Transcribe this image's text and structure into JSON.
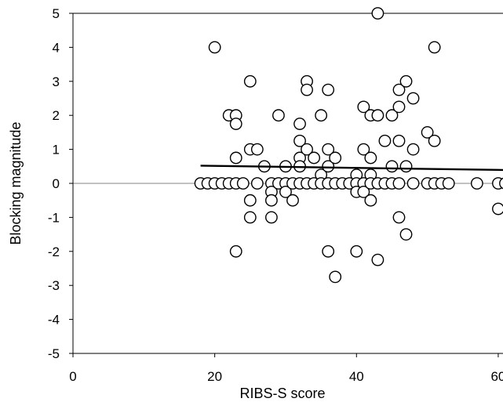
{
  "chart_data": {
    "type": "scatter",
    "title": "",
    "xlabel": "RIBS-S score",
    "ylabel": "Blocking magnitude",
    "xlim": [
      0,
      62
    ],
    "ylim": [
      -5,
      5
    ],
    "x_ticks": [
      "0",
      "20",
      "40",
      "60"
    ],
    "y_ticks": [
      "5",
      "4",
      "3",
      "2",
      "1",
      "0",
      "-1",
      "-2",
      "-3",
      "-4",
      "-5"
    ],
    "grid": false,
    "legend": "none",
    "colors": {
      "marker_fill": "#ffffff",
      "marker_edge": "#000000",
      "zero_line": "#9e9e9e",
      "trend_line": "#000000"
    },
    "trend_line": {
      "x": [
        18,
        62
      ],
      "y": [
        0.52,
        0.39
      ]
    },
    "points": [
      {
        "x": 18,
        "y": 0
      },
      {
        "x": 19,
        "y": 0
      },
      {
        "x": 20,
        "y": 0
      },
      {
        "x": 20,
        "y": 4
      },
      {
        "x": 21,
        "y": 0
      },
      {
        "x": 22,
        "y": 2
      },
      {
        "x": 22,
        "y": 0
      },
      {
        "x": 23,
        "y": 2
      },
      {
        "x": 23,
        "y": 1.75
      },
      {
        "x": 23,
        "y": 0.75
      },
      {
        "x": 23,
        "y": 0
      },
      {
        "x": 23,
        "y": -2
      },
      {
        "x": 24,
        "y": 0
      },
      {
        "x": 25,
        "y": 3
      },
      {
        "x": 25,
        "y": 1
      },
      {
        "x": 25,
        "y": -0.5
      },
      {
        "x": 25,
        "y": -1
      },
      {
        "x": 26,
        "y": 1
      },
      {
        "x": 26,
        "y": 0
      },
      {
        "x": 27,
        "y": 0.5
      },
      {
        "x": 28,
        "y": 0
      },
      {
        "x": 28,
        "y": -0.25
      },
      {
        "x": 28,
        "y": -0.5
      },
      {
        "x": 28,
        "y": -1
      },
      {
        "x": 29,
        "y": 2
      },
      {
        "x": 29,
        "y": 0
      },
      {
        "x": 30,
        "y": 0.5
      },
      {
        "x": 30,
        "y": 0
      },
      {
        "x": 30,
        "y": -0.25
      },
      {
        "x": 31,
        "y": 0
      },
      {
        "x": 31,
        "y": -0.5
      },
      {
        "x": 32,
        "y": 1.75
      },
      {
        "x": 32,
        "y": 1.25
      },
      {
        "x": 32,
        "y": 0.75
      },
      {
        "x": 32,
        "y": 0.5
      },
      {
        "x": 32,
        "y": 0
      },
      {
        "x": 33,
        "y": 3
      },
      {
        "x": 33,
        "y": 2.75
      },
      {
        "x": 33,
        "y": 1
      },
      {
        "x": 33,
        "y": 0
      },
      {
        "x": 34,
        "y": 0.75
      },
      {
        "x": 34,
        "y": 0
      },
      {
        "x": 35,
        "y": 2
      },
      {
        "x": 35,
        "y": 0.25
      },
      {
        "x": 35,
        "y": 0
      },
      {
        "x": 36,
        "y": 2.75
      },
      {
        "x": 36,
        "y": 1
      },
      {
        "x": 36,
        "y": 0.5
      },
      {
        "x": 36,
        "y": 0
      },
      {
        "x": 36,
        "y": -2
      },
      {
        "x": 37,
        "y": 0.75
      },
      {
        "x": 37,
        "y": 0
      },
      {
        "x": 37,
        "y": -2.75
      },
      {
        "x": 38,
        "y": 0
      },
      {
        "x": 39,
        "y": 0
      },
      {
        "x": 40,
        "y": 0.25
      },
      {
        "x": 40,
        "y": 0
      },
      {
        "x": 40,
        "y": -0.25
      },
      {
        "x": 40,
        "y": -2
      },
      {
        "x": 41,
        "y": 2.25
      },
      {
        "x": 41,
        "y": 1
      },
      {
        "x": 41,
        "y": 0
      },
      {
        "x": 41,
        "y": -0.25
      },
      {
        "x": 42,
        "y": 2
      },
      {
        "x": 42,
        "y": 0.75
      },
      {
        "x": 42,
        "y": 0.25
      },
      {
        "x": 42,
        "y": 0
      },
      {
        "x": 42,
        "y": -0.5
      },
      {
        "x": 43,
        "y": 5
      },
      {
        "x": 43,
        "y": 2
      },
      {
        "x": 43,
        "y": 0
      },
      {
        "x": 43,
        "y": -2.25
      },
      {
        "x": 44,
        "y": 1.25
      },
      {
        "x": 44,
        "y": 0
      },
      {
        "x": 45,
        "y": 2
      },
      {
        "x": 45,
        "y": 0.5
      },
      {
        "x": 45,
        "y": 0
      },
      {
        "x": 46,
        "y": 2.75
      },
      {
        "x": 46,
        "y": 2.25
      },
      {
        "x": 46,
        "y": 1.25
      },
      {
        "x": 46,
        "y": 0
      },
      {
        "x": 46,
        "y": -1
      },
      {
        "x": 47,
        "y": 3
      },
      {
        "x": 47,
        "y": 0.5
      },
      {
        "x": 47,
        "y": -1.5
      },
      {
        "x": 48,
        "y": 2.5
      },
      {
        "x": 48,
        "y": 1
      },
      {
        "x": 48,
        "y": 0
      },
      {
        "x": 50,
        "y": 1.5
      },
      {
        "x": 50,
        "y": 0
      },
      {
        "x": 51,
        "y": 4
      },
      {
        "x": 51,
        "y": 1.25
      },
      {
        "x": 51,
        "y": 0
      },
      {
        "x": 52,
        "y": 0
      },
      {
        "x": 53,
        "y": 0
      },
      {
        "x": 57,
        "y": 0
      },
      {
        "x": 60,
        "y": 0
      },
      {
        "x": 60,
        "y": -0.75
      },
      {
        "x": 61,
        "y": 0
      }
    ]
  }
}
